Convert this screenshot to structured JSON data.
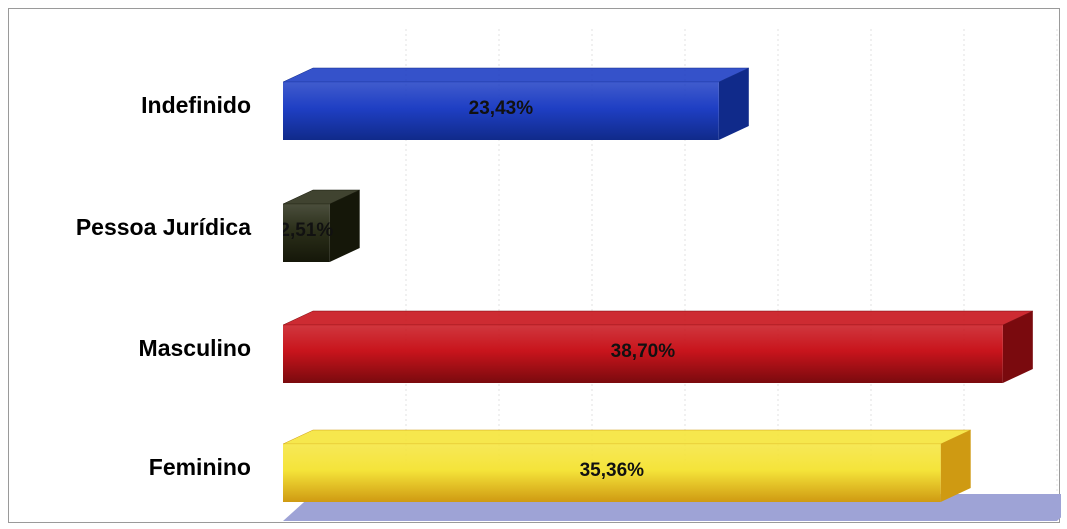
{
  "chart_data": {
    "type": "bar",
    "orientation": "horizontal",
    "style": "3d",
    "categories": [
      "Indefinido",
      "Pessoa Jurídica",
      "Masculino",
      "Feminino"
    ],
    "values": [
      23.43,
      2.51,
      38.7,
      35.36
    ],
    "value_labels": [
      "23,43%",
      "2,51%",
      "38,70%",
      "35,36%"
    ],
    "colors": [
      "#1f3fc4",
      "#2b2f1a",
      "#c8141c",
      "#f5e43a"
    ],
    "side_colors": [
      "#102a8a",
      "#151709",
      "#7a0a0e",
      "#cf9a12"
    ],
    "floor_color": "#9ea3d6",
    "xlim": [
      0,
      40
    ],
    "grid": true,
    "legend": false
  }
}
